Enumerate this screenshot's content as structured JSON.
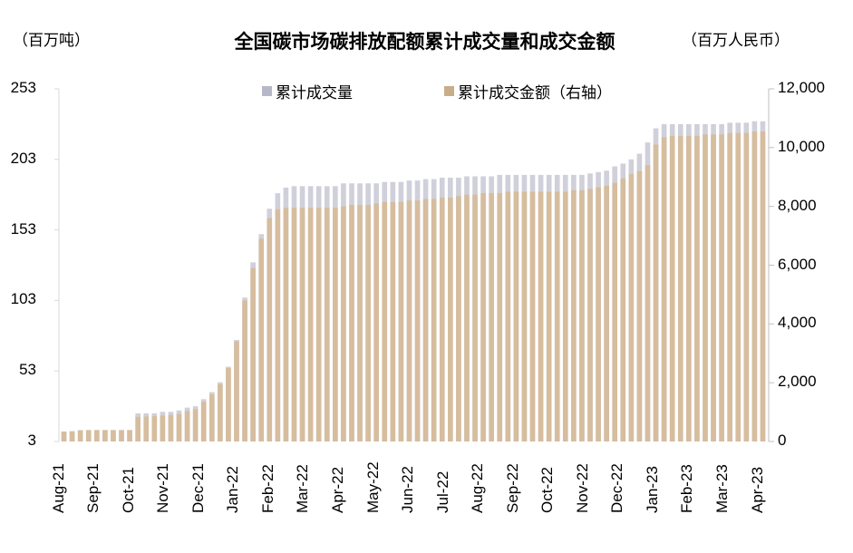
{
  "title": "全国碳市场碳排放配额累计成交量和成交金额",
  "left_unit": "（百万吨）",
  "right_unit": "（百万人民币）",
  "legend": [
    {
      "label": "累计成交量",
      "color": "#b7b8c7"
    },
    {
      "label": "累计成交金额（右轴）",
      "color": "#c9ad88"
    }
  ],
  "left_ticks": [
    "253",
    "203",
    "153",
    "103",
    "53",
    "3"
  ],
  "right_ticks": [
    "12,000",
    "10,000",
    "8,000",
    "6,000",
    "4,000",
    "2,000",
    "0"
  ],
  "x_ticks": [
    "Aug-21",
    "Sep-21",
    "Oct-21",
    "Nov-21",
    "Dec-21",
    "Jan-22",
    "Feb-22",
    "Mar-22",
    "Apr-22",
    "May-22",
    "Jun-22",
    "Jul-22",
    "Aug-22",
    "Sep-22",
    "Oct-22",
    "Nov-22",
    "Dec-22",
    "Jan-23",
    "Feb-23",
    "Mar-23",
    "Apr-23"
  ],
  "chart_data": {
    "type": "bar",
    "title": "全国碳市场碳排放配额累计成交量和成交金额",
    "xlabel": "",
    "ylabel": "百万吨",
    "y2label": "百万人民币",
    "ylim": [
      3,
      253
    ],
    "y2lim": [
      0,
      12000
    ],
    "legend_position": "top",
    "grid": false,
    "x_tick_labels": [
      "Aug-21",
      "Sep-21",
      "Oct-21",
      "Nov-21",
      "Dec-21",
      "Jan-22",
      "Feb-22",
      "Mar-22",
      "Apr-22",
      "May-22",
      "Jun-22",
      "Jul-22",
      "Aug-22",
      "Sep-22",
      "Oct-22",
      "Nov-22",
      "Dec-22",
      "Jan-23",
      "Feb-23",
      "Mar-23",
      "Apr-23"
    ],
    "series": [
      {
        "name": "累计成交量",
        "axis": "left",
        "values": [
          10,
          10,
          11,
          11,
          11,
          11,
          11,
          11,
          11,
          23,
          23,
          23,
          24,
          24,
          25,
          27,
          28,
          33,
          38,
          45,
          56,
          75,
          105,
          130,
          150,
          168,
          179,
          183,
          184,
          184,
          184,
          184,
          184,
          184,
          186,
          186,
          186,
          186,
          186,
          187,
          187,
          187,
          188,
          188,
          189,
          189,
          190,
          190,
          190,
          191,
          191,
          191,
          191,
          192,
          192,
          192,
          192,
          192,
          192,
          192,
          192,
          192,
          192,
          192,
          193,
          194,
          195,
          198,
          200,
          203,
          207,
          215,
          225,
          228,
          228,
          228,
          228,
          228,
          228,
          228,
          228,
          229,
          229,
          229,
          230,
          230
        ]
      },
      {
        "name": "累计成交金额（右轴）",
        "axis": "right",
        "values": [
          340,
          350,
          380,
          390,
          390,
          390,
          390,
          390,
          390,
          840,
          850,
          860,
          880,
          900,
          940,
          1040,
          1100,
          1350,
          1600,
          1950,
          2500,
          3400,
          4800,
          5900,
          6900,
          7600,
          7900,
          7950,
          7950,
          7950,
          7950,
          7950,
          7950,
          7950,
          8000,
          8050,
          8050,
          8050,
          8100,
          8150,
          8150,
          8150,
          8200,
          8200,
          8250,
          8250,
          8300,
          8300,
          8350,
          8400,
          8400,
          8450,
          8450,
          8450,
          8500,
          8500,
          8500,
          8500,
          8500,
          8500,
          8500,
          8500,
          8550,
          8550,
          8600,
          8650,
          8700,
          8800,
          8950,
          9100,
          9200,
          9400,
          10100,
          10350,
          10400,
          10400,
          10400,
          10400,
          10450,
          10450,
          10450,
          10500,
          10500,
          10500,
          10550,
          10550
        ]
      }
    ]
  }
}
